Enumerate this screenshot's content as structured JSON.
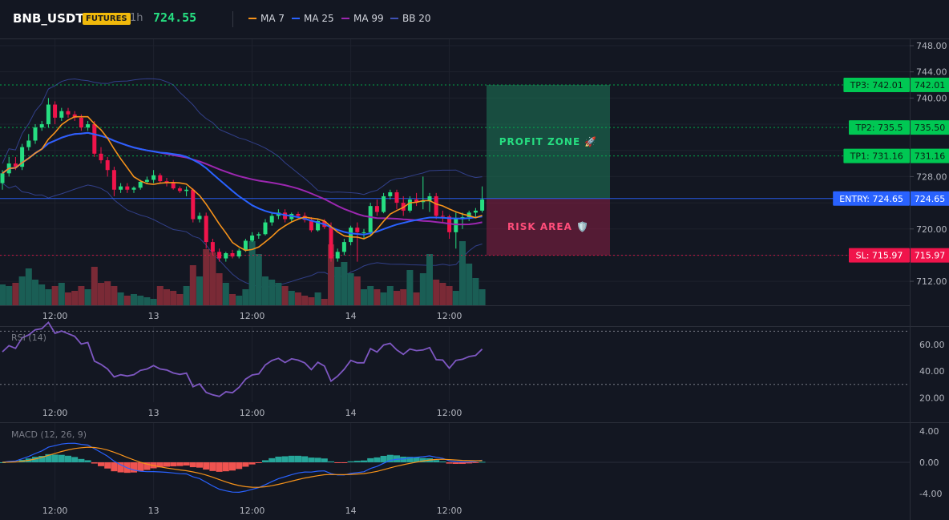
{
  "header": {
    "symbol": "BNB_USDT",
    "badge": "FUTURES",
    "interval": "1h",
    "price": "724.55",
    "legend": [
      {
        "label": "MA 7",
        "color": "#f7931a"
      },
      {
        "label": "MA 25",
        "color": "#2962ff"
      },
      {
        "label": "MA 99",
        "color": "#9c27b0"
      },
      {
        "label": "BB 20",
        "color": "#3f51b5"
      }
    ]
  },
  "main_axis": {
    "ticks": [
      "748.00",
      "744.00",
      "740.00",
      "728.00",
      "720.00",
      "712.00"
    ],
    "ylim": [
      708,
      750
    ]
  },
  "x_ticks": [
    "12:00",
    "13",
    "12:00",
    "14",
    "12:00"
  ],
  "levels": {
    "tp3": {
      "label": "TP3: 742.01",
      "value": "742.01",
      "price": 742.01,
      "color": "#00c853"
    },
    "tp2": {
      "label": "TP2: 735.5",
      "value": "735.50",
      "price": 735.5,
      "color": "#00c853"
    },
    "tp1": {
      "label": "TP1: 731.16",
      "value": "731.16",
      "price": 731.16,
      "color": "#00c853"
    },
    "entry": {
      "label": "ENTRY: 724.65",
      "value": "724.65",
      "price": 724.65,
      "color": "#2962ff"
    },
    "sl": {
      "label": "SL: 715.97",
      "value": "715.97",
      "price": 715.97,
      "color": "#f0144b"
    }
  },
  "zones": {
    "profit_label": "PROFIT ZONE 🚀",
    "risk_label": "RISK AREA 🛡️"
  },
  "rsi": {
    "label": "RSI (14)",
    "ticks": [
      "60.00",
      "40.00",
      "20.00"
    ],
    "ylim": [
      15,
      75
    ],
    "overbought": 70,
    "oversold": 30
  },
  "macd": {
    "label": "MACD (12, 26, 9)",
    "ticks": [
      "4.00",
      "0.00",
      "-4.00"
    ],
    "ylim": [
      -5,
      5
    ]
  },
  "chart_data": {
    "type": "candlestick",
    "candles": [
      [
        727.0,
        729.0,
        726.0,
        728.5,
        1
      ],
      [
        728.5,
        731.0,
        728.0,
        730.0,
        1
      ],
      [
        730.0,
        731.0,
        729.0,
        729.5,
        0
      ],
      [
        729.5,
        733.0,
        729.0,
        732.5,
        1
      ],
      [
        732.5,
        734.5,
        732.0,
        733.5,
        1
      ],
      [
        733.5,
        736.0,
        733.0,
        735.5,
        1
      ],
      [
        735.5,
        736.5,
        735.0,
        736.0,
        1
      ],
      [
        736.0,
        740.0,
        735.5,
        739.0,
        1
      ],
      [
        739.0,
        739.5,
        736.0,
        737.0,
        0
      ],
      [
        737.0,
        738.5,
        736.5,
        738.0,
        1
      ],
      [
        738.0,
        738.5,
        737.0,
        737.5,
        0
      ],
      [
        737.5,
        738.0,
        736.5,
        737.0,
        0
      ],
      [
        737.0,
        737.5,
        735.0,
        735.5,
        0
      ],
      [
        735.5,
        736.5,
        735.0,
        736.0,
        1
      ],
      [
        736.0,
        736.5,
        731.0,
        731.5,
        0
      ],
      [
        731.5,
        732.5,
        730.0,
        730.5,
        0
      ],
      [
        730.5,
        731.0,
        728.0,
        729.0,
        0
      ],
      [
        729.0,
        729.5,
        725.0,
        726.0,
        0
      ],
      [
        726.0,
        727.0,
        725.5,
        726.5,
        1
      ],
      [
        726.5,
        727.0,
        725.5,
        726.0,
        0
      ],
      [
        726.0,
        726.5,
        725.5,
        726.3,
        1
      ],
      [
        726.3,
        727.5,
        726.0,
        727.2,
        1
      ],
      [
        727.2,
        728.0,
        727.0,
        727.5,
        1
      ],
      [
        727.5,
        729.0,
        727.0,
        728.2,
        1
      ],
      [
        728.2,
        728.5,
        727.0,
        727.3,
        0
      ],
      [
        727.3,
        727.8,
        726.5,
        727.0,
        0
      ],
      [
        727.0,
        727.5,
        726.0,
        726.2,
        0
      ],
      [
        726.2,
        726.5,
        725.5,
        725.8,
        0
      ],
      [
        725.8,
        726.5,
        725.0,
        726.0,
        1
      ],
      [
        726.0,
        726.2,
        721.0,
        721.5,
        0
      ],
      [
        721.5,
        722.5,
        721.0,
        722.0,
        1
      ],
      [
        722.0,
        722.5,
        717.0,
        718.0,
        0
      ],
      [
        718.0,
        718.5,
        716.0,
        716.5,
        0
      ],
      [
        716.5,
        717.0,
        715.0,
        715.5,
        0
      ],
      [
        715.5,
        716.5,
        715.0,
        716.3,
        1
      ],
      [
        716.3,
        716.8,
        715.5,
        715.8,
        0
      ],
      [
        715.8,
        717.0,
        715.5,
        716.7,
        1
      ],
      [
        716.7,
        718.5,
        716.5,
        718.2,
        1
      ],
      [
        718.2,
        719.5,
        718.0,
        719.0,
        1
      ],
      [
        719.0,
        719.5,
        718.5,
        719.2,
        1
      ],
      [
        719.2,
        721.5,
        719.0,
        721.0,
        1
      ],
      [
        721.0,
        722.5,
        720.5,
        722.0,
        1
      ],
      [
        722.0,
        723.0,
        721.5,
        722.5,
        1
      ],
      [
        722.5,
        723.0,
        721.0,
        721.5,
        0
      ],
      [
        721.5,
        722.5,
        721.0,
        722.3,
        1
      ],
      [
        722.3,
        722.6,
        721.5,
        722.0,
        0
      ],
      [
        722.0,
        722.5,
        721.0,
        721.4,
        0
      ],
      [
        721.4,
        721.8,
        719.5,
        719.8,
        0
      ],
      [
        719.8,
        721.5,
        719.6,
        721.2,
        1
      ],
      [
        721.2,
        721.5,
        720.0,
        720.3,
        0
      ],
      [
        720.3,
        721.0,
        715.0,
        715.5,
        0
      ],
      [
        715.5,
        717.0,
        715.0,
        716.5,
        1
      ],
      [
        716.5,
        718.5,
        716.0,
        718.0,
        1
      ],
      [
        718.0,
        720.5,
        717.5,
        720.2,
        1
      ],
      [
        720.2,
        721.0,
        715.0,
        719.5,
        0
      ],
      [
        719.5,
        720.0,
        718.5,
        719.5,
        1
      ],
      [
        719.5,
        724.0,
        719.0,
        723.5,
        1
      ],
      [
        723.5,
        724.5,
        722.0,
        722.6,
        0
      ],
      [
        722.6,
        725.5,
        722.4,
        725.0,
        1
      ],
      [
        725.0,
        726.0,
        724.5,
        725.6,
        1
      ],
      [
        725.6,
        726.0,
        723.0,
        724.0,
        0
      ],
      [
        724.0,
        725.0,
        722.0,
        722.8,
        0
      ],
      [
        722.8,
        725.0,
        722.5,
        724.5,
        1
      ],
      [
        724.5,
        725.5,
        723.5,
        724.1,
        0
      ],
      [
        724.1,
        728.0,
        723.0,
        724.3,
        1
      ],
      [
        724.3,
        725.5,
        722.6,
        725.0,
        1
      ],
      [
        725.0,
        725.5,
        721.5,
        722.0,
        0
      ],
      [
        722.0,
        722.8,
        721.0,
        721.9,
        0
      ],
      [
        721.9,
        722.2,
        718.5,
        719.5,
        0
      ],
      [
        719.5,
        722.5,
        717.0,
        721.5,
        1
      ],
      [
        721.5,
        722.5,
        720.0,
        721.8,
        1
      ],
      [
        721.8,
        722.8,
        721.2,
        722.5,
        1
      ],
      [
        722.5,
        723.2,
        721.8,
        722.8,
        1
      ],
      [
        722.8,
        726.5,
        722.5,
        724.5,
        1
      ]
    ],
    "volumes": [
      13,
      12,
      14,
      18,
      23,
      16,
      13,
      10,
      12,
      14,
      8,
      9,
      12,
      10,
      24,
      14,
      15,
      12,
      8,
      6,
      7,
      6,
      5,
      4,
      12,
      10,
      9,
      7,
      12,
      25,
      18,
      35,
      33,
      20,
      14,
      7,
      6,
      10,
      40,
      32,
      18,
      16,
      14,
      12,
      9,
      8,
      6,
      5,
      8,
      4,
      38,
      24,
      27,
      20,
      18,
      10,
      12,
      10,
      8,
      12,
      9,
      10,
      22,
      8,
      20,
      32,
      16,
      14,
      12,
      9,
      40,
      26,
      17,
      10
    ]
  }
}
